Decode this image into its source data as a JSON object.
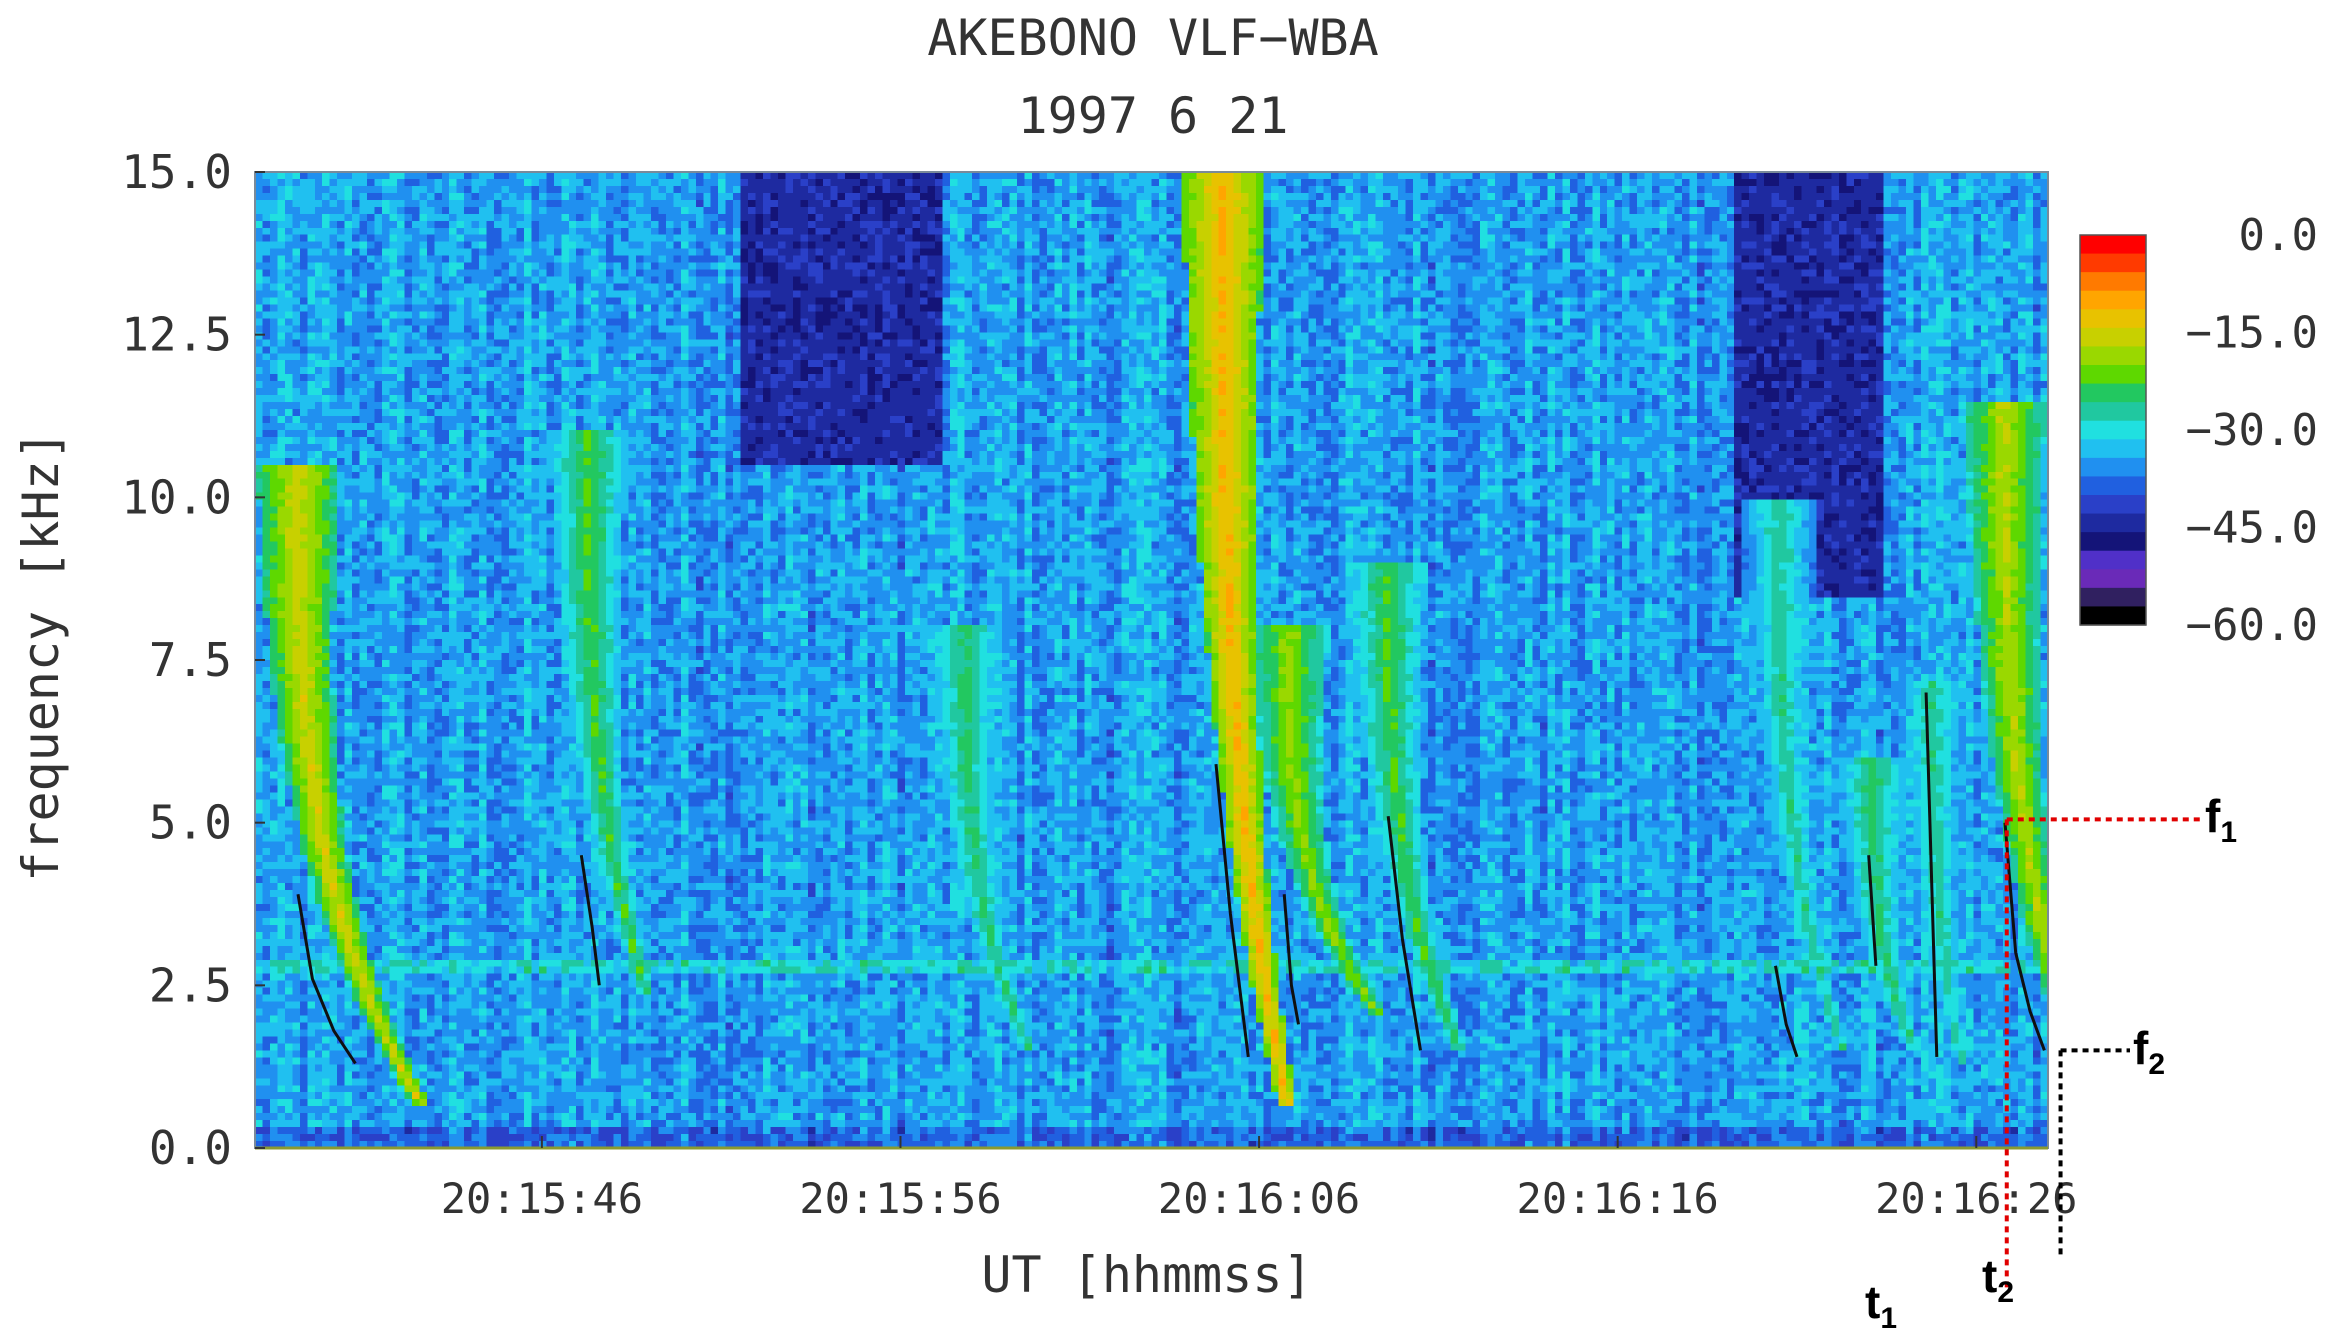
{
  "title": "AKEBONO VLF−WBA",
  "subtitle": "1997 6 21",
  "chart_data": {
    "type": "heatmap",
    "title": "AKEBONO VLF−WBA",
    "subtitle": "1997 6 21",
    "xlabel": "UT [hhmmss]",
    "ylabel": "frequency [kHz]",
    "ylim": [
      0,
      15
    ],
    "y_ticks": [
      0.0,
      2.5,
      5.0,
      7.5,
      10.0,
      12.5,
      15.0
    ],
    "y_tick_labels": [
      "0.0",
      "2.5",
      "5.0",
      "7.5",
      "10.0",
      "12.5",
      "15.0"
    ],
    "xlim": [
      38,
      88
    ],
    "x_tick_labels": [
      "20:15:46",
      "20:15:56",
      "20:16:06",
      "20:16:16",
      "20:16:26"
    ],
    "x_tick_values": [
      46,
      56,
      66,
      76,
      86
    ],
    "colorbar": {
      "range": [
        -60,
        0
      ],
      "tick_values": [
        0,
        -15,
        -30,
        -45,
        -60
      ],
      "tick_labels": [
        "0.0",
        "−15.0",
        "−30.0",
        "−45.0",
        "−60.0"
      ],
      "colors": [
        "#ff0000",
        "#ff3a00",
        "#ff7a00",
        "#ffa500",
        "#e8c200",
        "#c8d000",
        "#9ad800",
        "#5ed800",
        "#22c860",
        "#20c8a0",
        "#20e0e0",
        "#20c0f0",
        "#2090f0",
        "#2060e0",
        "#2a40c8",
        "#1e2aa0",
        "#141478",
        "#5030c8",
        "#6a2ab8",
        "#302060",
        "#000000"
      ]
    },
    "background_level": -35,
    "cutoff_band_khz": 2.8,
    "whistlers": [
      {
        "t0": 39.2,
        "dur": 3.5,
        "f_hi": 10.5,
        "f_lo": 0.6,
        "level": -14,
        "traced": [
          [
            39.2,
            3.9
          ],
          [
            39.6,
            2.6
          ],
          [
            40.2,
            1.8
          ],
          [
            40.8,
            1.3
          ]
        ]
      },
      {
        "t0": 47.3,
        "dur": 1.6,
        "f_hi": 11.0,
        "f_lo": 2.4,
        "level": -22,
        "traced": [
          [
            47.1,
            4.5
          ],
          [
            47.4,
            3.4
          ],
          [
            47.6,
            2.5
          ]
        ]
      },
      {
        "t0": 57.8,
        "dur": 1.8,
        "f_hi": 8.0,
        "f_lo": 1.5,
        "level": -24,
        "traced": []
      },
      {
        "t0": 65.0,
        "dur": 1.8,
        "f_hi": 15.0,
        "f_lo": 0.6,
        "level": -10,
        "traced": [
          [
            64.8,
            5.9
          ],
          [
            65.2,
            3.6
          ],
          [
            65.7,
            1.4
          ]
        ]
      },
      {
        "t0": 66.8,
        "dur": 2.6,
        "f_hi": 8.0,
        "f_lo": 2.0,
        "level": -18,
        "traced": [
          [
            66.7,
            3.9
          ],
          [
            66.9,
            2.5
          ],
          [
            67.1,
            1.9
          ]
        ]
      },
      {
        "t0": 69.6,
        "dur": 2.0,
        "f_hi": 9.0,
        "f_lo": 1.5,
        "level": -22,
        "traced": [
          [
            69.6,
            5.1
          ],
          [
            70.0,
            3.2
          ],
          [
            70.5,
            1.5
          ]
        ]
      },
      {
        "t0": 80.5,
        "dur": 1.8,
        "f_hi": 10.0,
        "f_lo": 1.5,
        "level": -26,
        "traced": [
          [
            80.4,
            2.8
          ],
          [
            80.7,
            1.9
          ],
          [
            81.0,
            1.4
          ]
        ]
      },
      {
        "t0": 83.1,
        "dur": 1.2,
        "f_hi": 6.0,
        "f_lo": 1.5,
        "level": -24,
        "traced": [
          [
            83.0,
            4.5
          ],
          [
            83.2,
            2.8
          ]
        ]
      },
      {
        "t0": 84.8,
        "dur": 0.8,
        "f_hi": 7.2,
        "f_lo": 1.3,
        "level": -26,
        "traced": [
          [
            84.6,
            7.0
          ],
          [
            84.9,
            1.4
          ]
        ]
      },
      {
        "t0": 86.8,
        "dur": 2.5,
        "f_hi": 11.5,
        "f_lo": 0.6,
        "level": -16,
        "traced": [
          [
            86.8,
            5.0
          ],
          [
            87.1,
            3.0
          ],
          [
            87.5,
            2.1
          ],
          [
            87.9,
            1.5
          ]
        ]
      }
    ],
    "dark_regions": [
      {
        "t_start": 51.6,
        "t_end": 57.2,
        "f_start": 10.5,
        "f_end": 15.0,
        "level": -45
      },
      {
        "t_start": 79.2,
        "t_end": 83.4,
        "f_start": 8.5,
        "f_end": 15.0,
        "level": -45
      }
    ],
    "markers": {
      "t1": {
        "label": "t",
        "sub": "1",
        "color": "#e00000",
        "t": 86.85
      },
      "f1": {
        "label": "f",
        "sub": "1",
        "color": "#e00000",
        "f": 5.05
      },
      "t2": {
        "label": "t",
        "sub": "2",
        "color": "#000000",
        "t": 88.35
      },
      "f2": {
        "label": "f",
        "sub": "2",
        "color": "#000000",
        "f": 1.5
      }
    }
  }
}
